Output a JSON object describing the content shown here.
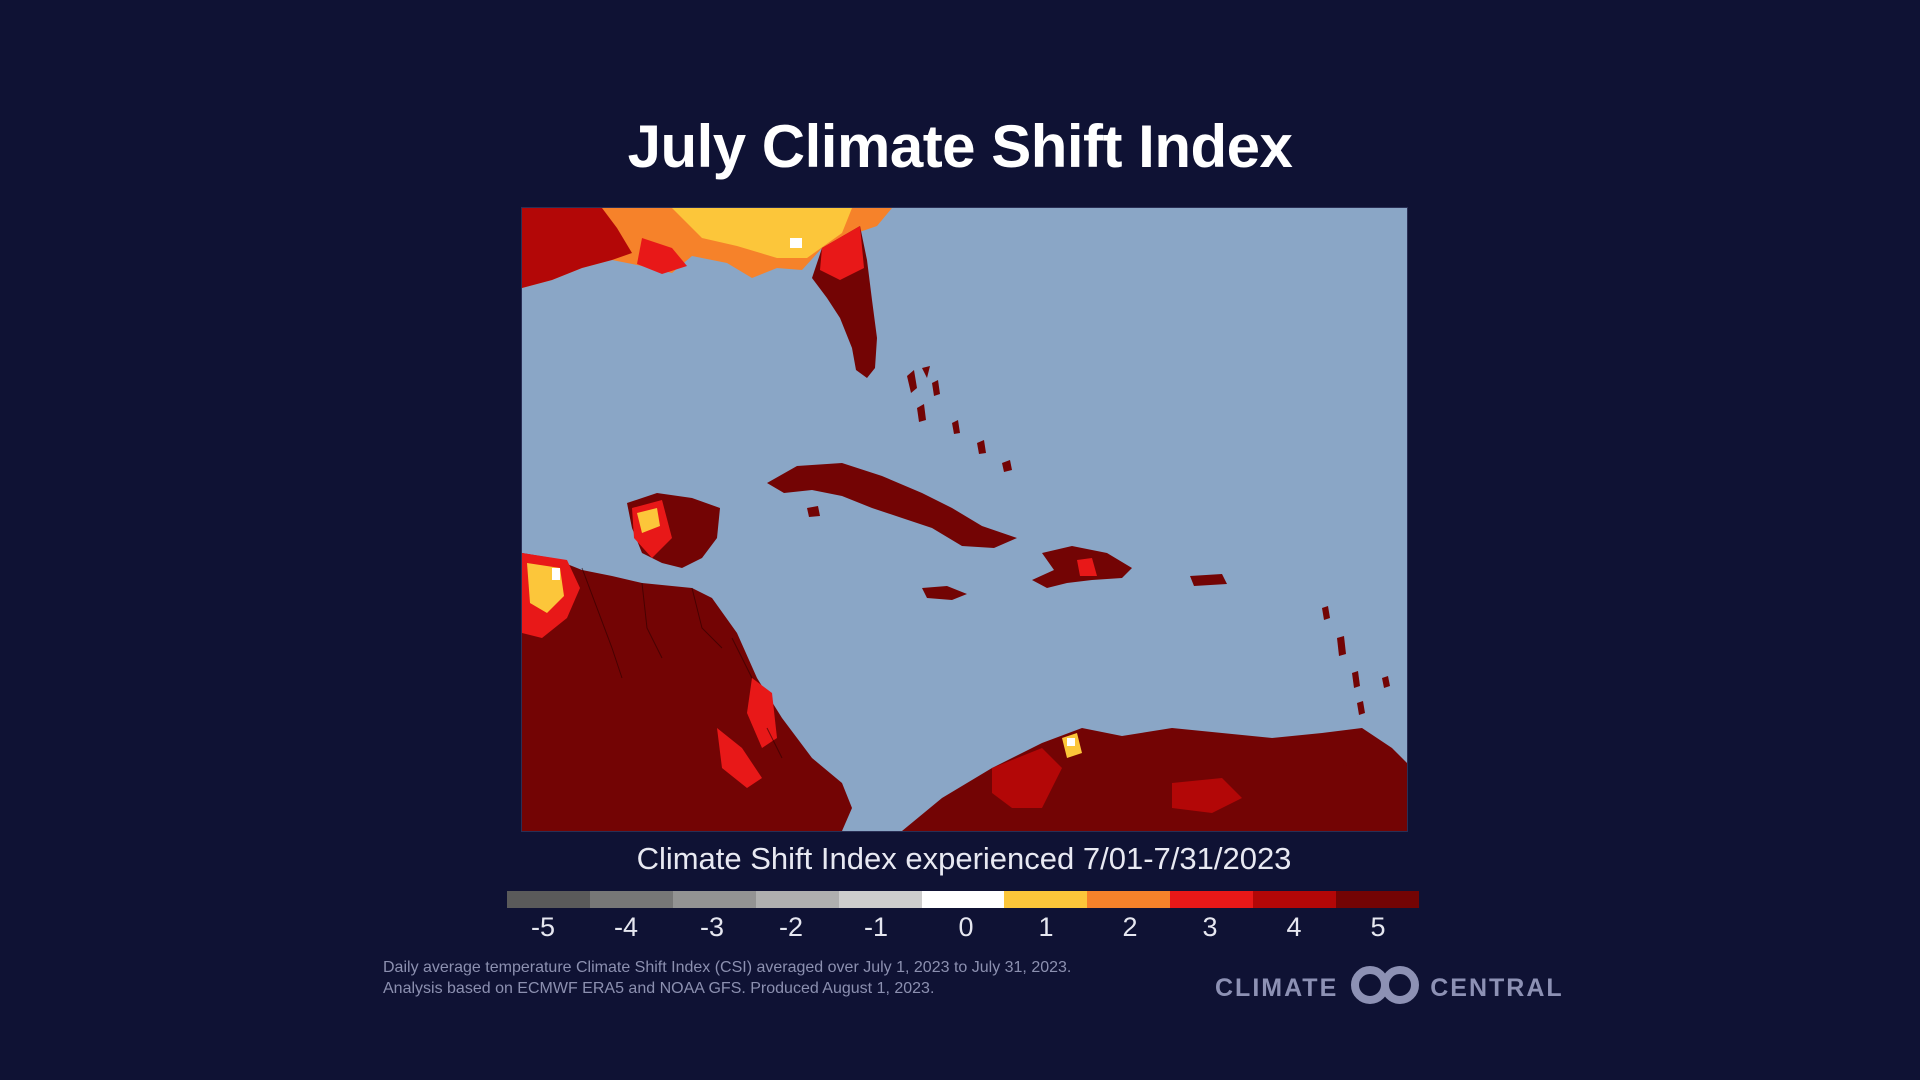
{
  "title": "July Climate Shift Index",
  "legend": {
    "title": "Climate Shift Index experienced 7/01-7/31/2023",
    "labels": [
      "-5",
      "-4",
      "-3",
      "-2",
      "-1",
      "0",
      "1",
      "2",
      "3",
      "4",
      "5"
    ],
    "colors": [
      "#5a5a5a",
      "#777777",
      "#939393",
      "#afafaf",
      "#cdcdcd",
      "#ffffff",
      "#fcc63a",
      "#f6822a",
      "#e81818",
      "#b30707",
      "#730404"
    ]
  },
  "map": {
    "ocean_color": "#8aa6c6",
    "dominant_land_color": "#730404"
  },
  "footnote": {
    "line1": "Daily average temperature Climate Shift Index (CSI) averaged over July 1, 2023 to July 31, 2023.",
    "line2": "Analysis based on ECMWF ERA5 and NOAA GFS. Produced August 1, 2023."
  },
  "brand": {
    "left": "CLIMATE",
    "right": "CENTRAL",
    "logo_icon": "infinity-rings-icon"
  }
}
